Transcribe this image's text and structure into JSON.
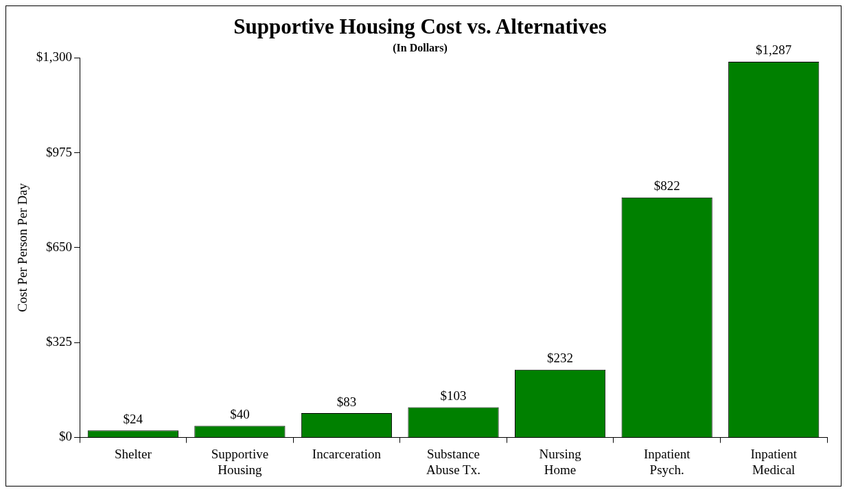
{
  "chart_data": {
    "type": "bar",
    "title": "Supportive Housing Cost vs. Alternatives",
    "subtitle": "(In Dollars)",
    "ylabel": "Cost Per Person Per Day",
    "categories": [
      "Shelter",
      "Supportive Housing",
      "Incarceration",
      "Substance Abuse Tx.",
      "Nursing Home",
      "Inpatient Psych.",
      "Inpatient Medical"
    ],
    "values": [
      24,
      40,
      83,
      103,
      232,
      822,
      1287
    ],
    "value_labels": [
      "$24",
      "$40",
      "$83",
      "$103",
      "$232",
      "$822",
      "$1,287"
    ],
    "color": "#008000",
    "ylim": [
      0,
      1300
    ],
    "yticks": [
      {
        "value": 0,
        "label": "$0"
      },
      {
        "value": 325,
        "label": "$325"
      },
      {
        "value": 650,
        "label": "$650"
      },
      {
        "value": 975,
        "label": "$975"
      },
      {
        "value": 1300,
        "label": "$1,300"
      }
    ],
    "grid": false,
    "legend": false
  }
}
